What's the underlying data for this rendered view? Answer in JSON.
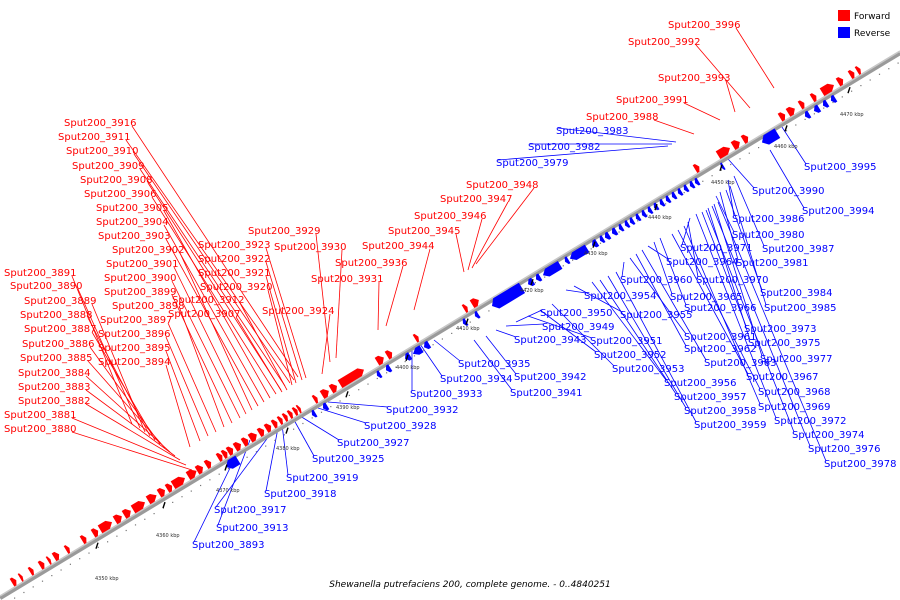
{
  "caption": "Shewanella putrefaciens 200, complete genome. - 0..4840251",
  "legend": {
    "forward": {
      "label": "Forward",
      "color": "#ff0000"
    },
    "reverse": {
      "label": "Reverse",
      "color": "#0000ff"
    }
  },
  "ticks": [
    "4350 kbp",
    "4360 kbp",
    "4370 kbp",
    "4380 kbp",
    "4390 kbp",
    "4400 kbp",
    "4410 kbp",
    "4420 kbp",
    "4430 kbp",
    "4440 kbp",
    "4450 kbp",
    "4460 kbp",
    "4470 kbp"
  ],
  "forward_labels": [
    "Sput200_3880",
    "Sput200_3881",
    "Sput200_3882",
    "Sput200_3883",
    "Sput200_3884",
    "Sput200_3885",
    "Sput200_3886",
    "Sput200_3887",
    "Sput200_3888",
    "Sput200_3889",
    "Sput200_3890",
    "Sput200_3891",
    "Sput200_3894",
    "Sput200_3895",
    "Sput200_3896",
    "Sput200_3897",
    "Sput200_3898",
    "Sput200_3899",
    "Sput200_3900",
    "Sput200_3901",
    "Sput200_3902",
    "Sput200_3903",
    "Sput200_3904",
    "Sput200_3905",
    "Sput200_3906",
    "Sput200_3908",
    "Sput200_3909",
    "Sput200_3910",
    "Sput200_3911",
    "Sput200_3916",
    "Sput200_3907",
    "Sput200_3912",
    "Sput200_3920",
    "Sput200_3921",
    "Sput200_3922",
    "Sput200_3923",
    "Sput200_3924",
    "Sput200_3929",
    "Sput200_3930",
    "Sput200_3931",
    "Sput200_3936",
    "Sput200_3944",
    "Sput200_3945",
    "Sput200_3946",
    "Sput200_3947",
    "Sput200_3948",
    "Sput200_3988",
    "Sput200_3991",
    "Sput200_3993",
    "Sput200_3992",
    "Sput200_3996"
  ],
  "reverse_labels": [
    "Sput200_3893",
    "Sput200_3913",
    "Sput200_3917",
    "Sput200_3918",
    "Sput200_3919",
    "Sput200_3925",
    "Sput200_3927",
    "Sput200_3928",
    "Sput200_3932",
    "Sput200_3933",
    "Sput200_3934",
    "Sput200_3935",
    "Sput200_3941",
    "Sput200_3942",
    "Sput200_3943",
    "Sput200_3949",
    "Sput200_3950",
    "Sput200_3951",
    "Sput200_3952",
    "Sput200_3953",
    "Sput200_3954",
    "Sput200_3955",
    "Sput200_3956",
    "Sput200_3957",
    "Sput200_3958",
    "Sput200_3959",
    "Sput200_3960",
    "Sput200_3961",
    "Sput200_3962",
    "Sput200_3963",
    "Sput200_3964",
    "Sput200_3965",
    "Sput200_3966",
    "Sput200_3967",
    "Sput200_3968",
    "Sput200_3969",
    "Sput200_3970",
    "Sput200_3971",
    "Sput200_3972",
    "Sput200_3973",
    "Sput200_3974",
    "Sput200_3975",
    "Sput200_3976",
    "Sput200_3977",
    "Sput200_3978",
    "Sput200_3979",
    "Sput200_3980",
    "Sput200_3981",
    "Sput200_3982",
    "Sput200_3983",
    "Sput200_3984",
    "Sput200_3985",
    "Sput200_3986",
    "Sput200_3987",
    "Sput200_3990",
    "Sput200_3994",
    "Sput200_3995"
  ]
}
